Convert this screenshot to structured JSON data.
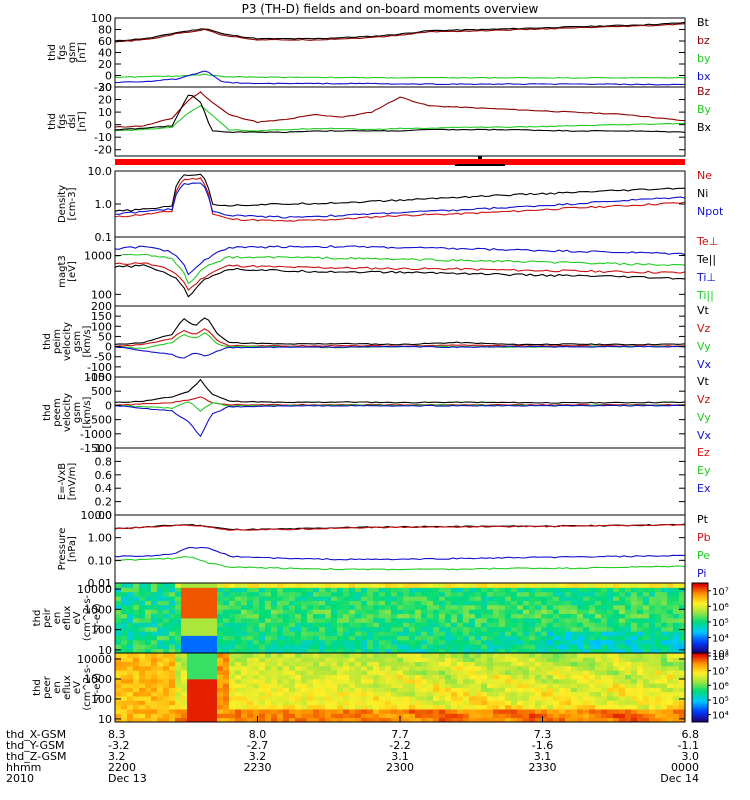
{
  "title": "P3 (TH-D) fields and on-board moments overview",
  "colors": {
    "black": "#000000",
    "red": "#cc1111",
    "darkred": "#8b0000",
    "green": "#22cc22",
    "blue": "#1111cc",
    "status_bar": "#ff0000"
  },
  "footer": {
    "labels": [
      "thd_X-GSM",
      "thd_Y-GSM",
      "thd_Z-GSM",
      "hhmm",
      "2010"
    ],
    "columns": [
      {
        "x": "8.3",
        "y": "-3.2",
        "z": "3.2",
        "time": "2200",
        "date": "Dec 13"
      },
      {
        "x": "8.0",
        "y": "-2.7",
        "z": "3.2",
        "time": "2230",
        "date": ""
      },
      {
        "x": "7.7",
        "y": "-2.2",
        "z": "3.1",
        "time": "2300",
        "date": ""
      },
      {
        "x": "7.3",
        "y": "-1.6",
        "z": "3.1",
        "time": "2330",
        "date": ""
      },
      {
        "x": "6.8",
        "y": "-1.1",
        "z": "3.0",
        "time": "0000",
        "date": "Dec 14"
      }
    ]
  },
  "chart_data": [
    {
      "id": "fgs-gsm-1",
      "type": "line",
      "ylabel": [
        "thd",
        "fgs",
        "gsm",
        "[nT]"
      ],
      "ylim": [
        -20,
        100
      ],
      "scale": "linear",
      "yticks": [
        "-20",
        "0",
        "20",
        "40",
        "60",
        "80",
        "100"
      ],
      "ytick_values": [
        -20,
        0,
        20,
        40,
        60,
        80,
        100
      ],
      "x": [
        0,
        0.06,
        0.11,
        0.16,
        0.19,
        0.25,
        0.35,
        0.45,
        0.5,
        0.55,
        0.65,
        0.75,
        0.85,
        0.95,
        1.0
      ],
      "series": [
        {
          "name": "Bt",
          "color": "black",
          "values": [
            60,
            65,
            75,
            82,
            72,
            64,
            64,
            68,
            72,
            78,
            80,
            83,
            86,
            89,
            92
          ]
        },
        {
          "name": "bz",
          "color": "darkred",
          "values": [
            58,
            63,
            73,
            80,
            70,
            62,
            62,
            66,
            70,
            76,
            78,
            81,
            84,
            87,
            90
          ]
        },
        {
          "name": "by",
          "color": "green",
          "values": [
            -3,
            -2,
            -1,
            2,
            -2,
            -3,
            -3,
            -4,
            -4,
            -4,
            -4,
            -4,
            -4,
            -4,
            -4
          ]
        },
        {
          "name": "bx",
          "color": "blue",
          "values": [
            -12,
            -10,
            -6,
            8,
            -12,
            -14,
            -14,
            -14,
            -15,
            -15,
            -15,
            -15,
            -15,
            -16,
            -16
          ]
        }
      ]
    },
    {
      "id": "fgs-dsl",
      "type": "line",
      "ylabel": [
        "thd",
        "fgs",
        "dsl",
        "[nT]"
      ],
      "ylim": [
        -25,
        30
      ],
      "scale": "linear",
      "yticks": [
        "-20",
        "-10",
        "0",
        "10",
        "20",
        "30"
      ],
      "ytick_values": [
        -20,
        -10,
        0,
        10,
        20,
        30
      ],
      "x": [
        0,
        0.05,
        0.1,
        0.13,
        0.15,
        0.17,
        0.2,
        0.25,
        0.3,
        0.35,
        0.4,
        0.45,
        0.5,
        0.55,
        0.6,
        0.7,
        0.8,
        0.9,
        1.0
      ],
      "series": [
        {
          "name": "Bz",
          "color": "darkred",
          "values": [
            -2,
            -1,
            5,
            20,
            26,
            18,
            8,
            2,
            4,
            8,
            6,
            10,
            22,
            15,
            14,
            12,
            10,
            8,
            3
          ]
        },
        {
          "name": "By",
          "color": "green",
          "values": [
            -5,
            -4,
            -2,
            10,
            15,
            8,
            -4,
            -5,
            -4,
            -3,
            -3,
            -4,
            -3,
            -3,
            -2,
            -2,
            -1,
            0,
            1
          ]
        },
        {
          "name": "Bx",
          "color": "black",
          "values": [
            -4,
            -3,
            -1,
            25,
            18,
            -5,
            -6,
            -6,
            -6,
            -5,
            -5,
            -5,
            -5,
            -4,
            -4,
            -4,
            -5,
            -5,
            -6
          ]
        }
      ]
    },
    {
      "id": "density",
      "type": "line",
      "ylabel": [
        "Density",
        "[cm-3]"
      ],
      "ylim": [
        0.1,
        10
      ],
      "scale": "log",
      "yticks": [
        "0.1",
        "1.0",
        "10.0"
      ],
      "ytick_values": [
        0.1,
        1,
        10
      ],
      "x": [
        0,
        0.06,
        0.1,
        0.12,
        0.15,
        0.17,
        0.2,
        0.3,
        0.4,
        0.5,
        0.6,
        0.7,
        0.8,
        0.9,
        1.0
      ],
      "series": [
        {
          "name": "Ne",
          "color": "red",
          "values": [
            0.4,
            0.5,
            0.6,
            5.5,
            6.0,
            0.5,
            0.35,
            0.3,
            0.35,
            0.45,
            0.5,
            0.6,
            0.75,
            0.9,
            1.1
          ]
        },
        {
          "name": "Ni",
          "color": "black",
          "values": [
            0.6,
            0.7,
            0.9,
            7.5,
            8.0,
            1.0,
            0.9,
            1.0,
            1.1,
            1.3,
            1.6,
            1.9,
            2.2,
            2.6,
            3.0
          ]
        },
        {
          "name": "Npot",
          "color": "blue",
          "values": [
            0.5,
            0.6,
            0.7,
            4.0,
            4.5,
            0.6,
            0.45,
            0.4,
            0.45,
            0.55,
            0.65,
            0.8,
            1.0,
            1.3,
            1.6
          ]
        }
      ]
    },
    {
      "id": "temperature",
      "type": "line",
      "ylabel": [
        "magt3",
        "[eV]"
      ],
      "ylim": [
        50,
        3000
      ],
      "scale": "log",
      "yticks": [
        "100",
        "1000"
      ],
      "ytick_values": [
        100,
        1000
      ],
      "x": [
        0,
        0.05,
        0.1,
        0.13,
        0.16,
        0.2,
        0.3,
        0.4,
        0.5,
        0.6,
        0.7,
        0.8,
        0.9,
        1.0
      ],
      "series": [
        {
          "name": "Te⊥",
          "color": "red",
          "values": [
            600,
            650,
            400,
            120,
            300,
            550,
            500,
            480,
            460,
            450,
            420,
            400,
            380,
            360
          ]
        },
        {
          "name": "Te||",
          "color": "black",
          "values": [
            500,
            550,
            300,
            80,
            250,
            450,
            400,
            380,
            370,
            350,
            320,
            300,
            280,
            250
          ]
        },
        {
          "name": "Ti⊥",
          "color": "blue",
          "values": [
            1500,
            1700,
            1200,
            300,
            800,
            1600,
            1700,
            1700,
            1600,
            1500,
            1400,
            1300,
            1200,
            1100
          ]
        },
        {
          "name": "Ti||",
          "color": "green",
          "values": [
            1000,
            1100,
            800,
            150,
            500,
            900,
            900,
            850,
            800,
            750,
            700,
            650,
            600,
            550
          ]
        }
      ]
    },
    {
      "id": "peim-velocity",
      "type": "line",
      "ylabel": [
        "thd",
        "peim",
        "velocity",
        "gsm",
        "[km/s]"
      ],
      "ylim": [
        -150,
        200
      ],
      "scale": "linear",
      "yticks": [
        "-150",
        "-100",
        "-50",
        "0",
        "50",
        "100",
        "150",
        "200"
      ],
      "ytick_values": [
        -150,
        -100,
        -50,
        0,
        50,
        100,
        150,
        200
      ],
      "x": [
        0,
        0.05,
        0.1,
        0.12,
        0.14,
        0.16,
        0.18,
        0.2,
        0.3,
        0.4,
        0.5,
        0.6,
        0.7,
        0.8,
        0.9,
        1.0
      ],
      "series": [
        {
          "name": "Vt",
          "color": "black",
          "values": [
            10,
            20,
            60,
            140,
            100,
            150,
            60,
            20,
            12,
            15,
            10,
            20,
            10,
            12,
            10,
            12
          ]
        },
        {
          "name": "Vz",
          "color": "red",
          "values": [
            0,
            10,
            40,
            80,
            60,
            90,
            30,
            5,
            3,
            5,
            2,
            8,
            3,
            4,
            2,
            3
          ]
        },
        {
          "name": "Vy",
          "color": "green",
          "values": [
            0,
            -10,
            20,
            60,
            40,
            70,
            10,
            0,
            0,
            -5,
            0,
            0,
            -3,
            0,
            0,
            0
          ]
        },
        {
          "name": "Vx",
          "color": "blue",
          "values": [
            0,
            -20,
            -40,
            -60,
            -30,
            -50,
            -20,
            -5,
            -3,
            -2,
            0,
            -3,
            0,
            -2,
            0,
            -2
          ]
        }
      ]
    },
    {
      "id": "peem-velocity",
      "type": "line",
      "ylabel": [
        "thd",
        "peem",
        "velocity",
        "gsm",
        "[km/s]"
      ],
      "ylim": [
        -1500,
        1000
      ],
      "scale": "linear",
      "yticks": [
        "-1500",
        "-1000",
        "-500",
        "0",
        "500",
        "1000"
      ],
      "ytick_values": [
        -1500,
        -1000,
        -500,
        0,
        500,
        1000
      ],
      "x": [
        0,
        0.05,
        0.1,
        0.13,
        0.15,
        0.17,
        0.2,
        0.3,
        0.4,
        0.5,
        0.6,
        0.7,
        0.8,
        0.9,
        1.0
      ],
      "series": [
        {
          "name": "Vt",
          "color": "black",
          "values": [
            100,
            150,
            300,
            500,
            900,
            400,
            150,
            100,
            120,
            100,
            110,
            100,
            90,
            100,
            110
          ]
        },
        {
          "name": "Vz",
          "color": "red",
          "values": [
            0,
            50,
            100,
            200,
            300,
            100,
            30,
            20,
            30,
            20,
            25,
            20,
            15,
            20,
            20
          ]
        },
        {
          "name": "Vy",
          "color": "green",
          "values": [
            0,
            -50,
            -100,
            150,
            -200,
            100,
            -20,
            0,
            10,
            0,
            5,
            0,
            0,
            5,
            0
          ]
        },
        {
          "name": "Vx",
          "color": "blue",
          "values": [
            0,
            -100,
            -200,
            -600,
            -1100,
            -300,
            -50,
            -20,
            -10,
            -20,
            -10,
            -15,
            -10,
            -10,
            -10
          ]
        }
      ]
    },
    {
      "id": "e-field",
      "type": "line",
      "ylabel": [
        "E=-VxB",
        "[mV/m]"
      ],
      "ylim": [
        0,
        1
      ],
      "scale": "linear",
      "yticks": [
        "0.0",
        "0.2",
        "0.4",
        "0.6",
        "0.8",
        "1.0"
      ],
      "ytick_values": [
        0,
        0.2,
        0.4,
        0.6,
        0.8,
        1.0
      ],
      "x": [],
      "series": [
        {
          "name": "Ez",
          "color": "red",
          "values": []
        },
        {
          "name": "Ey",
          "color": "green",
          "values": []
        },
        {
          "name": "Ex",
          "color": "blue",
          "values": []
        }
      ]
    },
    {
      "id": "pressure",
      "type": "line",
      "ylabel": [
        "Pressure",
        "[nPa]"
      ],
      "ylim": [
        0.01,
        10
      ],
      "scale": "log",
      "yticks": [
        "0.01",
        "0.10",
        "1.00",
        "10.00"
      ],
      "ytick_values": [
        0.01,
        0.1,
        1,
        10
      ],
      "x": [
        0,
        0.06,
        0.1,
        0.13,
        0.16,
        0.2,
        0.3,
        0.4,
        0.5,
        0.6,
        0.7,
        0.8,
        0.9,
        1.0
      ],
      "series": [
        {
          "name": "Pt",
          "color": "black",
          "values": [
            2.5,
            3.0,
            3.5,
            3.8,
            3.2,
            2.3,
            2.4,
            2.8,
            3.0,
            3.1,
            3.2,
            3.3,
            3.5,
            3.8
          ]
        },
        {
          "name": "Pb",
          "color": "red",
          "values": [
            2.4,
            2.9,
            3.4,
            3.6,
            3.1,
            2.2,
            2.3,
            2.7,
            2.9,
            3.0,
            3.1,
            3.2,
            3.4,
            3.7
          ]
        },
        {
          "name": "Pe",
          "color": "green",
          "values": [
            0.1,
            0.11,
            0.12,
            0.15,
            0.08,
            0.05,
            0.045,
            0.04,
            0.04,
            0.04,
            0.045,
            0.045,
            0.05,
            0.055
          ]
        },
        {
          "name": "Pi",
          "color": "blue",
          "values": [
            0.15,
            0.16,
            0.18,
            0.35,
            0.35,
            0.15,
            0.12,
            0.11,
            0.11,
            0.12,
            0.13,
            0.14,
            0.15,
            0.16
          ]
        }
      ]
    },
    {
      "id": "peir-spectrogram",
      "type": "heatmap",
      "ylabel": [
        "thd",
        "peir",
        "en",
        "eflux",
        "eV",
        "(cm^2-s-",
        "sr-eV)"
      ],
      "ylim": [
        7,
        20000
      ],
      "scale": "log",
      "yticks": [
        "10",
        "100",
        "1000",
        "10000"
      ],
      "ytick_values": [
        10,
        100,
        1000,
        10000
      ],
      "colorbar_ticks": [
        "10³",
        "10⁴",
        "10⁵",
        "10⁶",
        "10⁷"
      ],
      "colorbar_range": [
        3,
        7.5
      ]
    },
    {
      "id": "peer-spectrogram",
      "type": "heatmap",
      "ylabel": [
        "thd",
        "peer",
        "en",
        "eflux",
        "eV",
        "(cm^2-s-",
        "sr-eV)"
      ],
      "ylim": [
        7,
        20000
      ],
      "scale": "log",
      "yticks": [
        "10",
        "100",
        "1000",
        "10000"
      ],
      "ytick_values": [
        10,
        100,
        1000,
        10000
      ],
      "colorbar_ticks": [
        "10⁴",
        "10⁵",
        "10⁶",
        "10⁷",
        "10⁸"
      ],
      "colorbar_range": [
        3.5,
        8.2
      ]
    }
  ]
}
